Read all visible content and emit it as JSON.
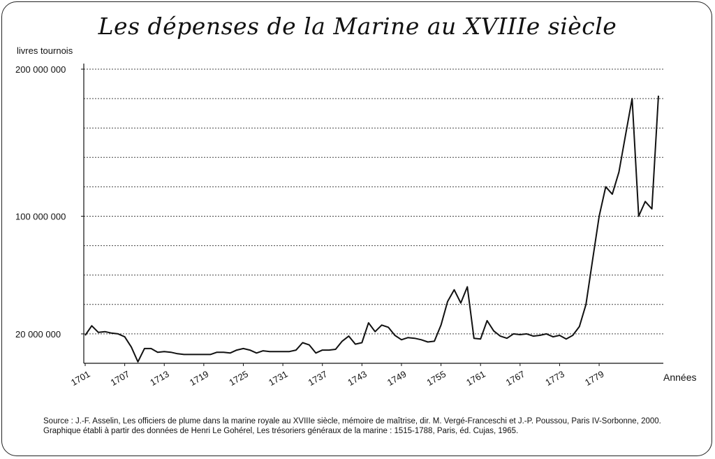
{
  "title": "Les dépenses de la Marine au XVIIIe siècle",
  "source_lines": [
    "Source : J.-F. Asselin, Les officiers de plume dans la marine royale au XVIIIe siècle, mémoire de maîtrise, dir. M. Vergé-Franceschi et J.-P. Poussou, Paris IV-Sorbonne, 2000.",
    "Graphique établi à partir des données de Henri Le Gohérel, Les trésoriers généraux de la marine : 1515-1788, Paris, éd. Cujas, 1965."
  ],
  "chart_data": {
    "type": "line",
    "xlabel": "Années",
    "ylabel": "livres tournois",
    "xlim": [
      1701,
      1788
    ],
    "ylim": [
      0,
      200000000
    ],
    "y_ticks": [
      {
        "value": 200000000,
        "label": "200 000 000"
      },
      {
        "value": 100000000,
        "label": "100 000 000"
      },
      {
        "value": 20000000,
        "label": "20 000 000"
      }
    ],
    "x_ticks": [
      "1701",
      "1707",
      "1713",
      "1719",
      "1725",
      "1731",
      "1737",
      "1743",
      "1749",
      "1755",
      "1761",
      "1767",
      "1773",
      "1779"
    ],
    "grid": "horizontal dotted",
    "grid_step": 20000000,
    "line_color": "#111111",
    "series": [
      {
        "x": [
          1701,
          1702,
          1703,
          1704,
          1705,
          1706,
          1707,
          1708,
          1709,
          1710,
          1711,
          1712,
          1713,
          1714,
          1715,
          1716,
          1717,
          1718,
          1719,
          1720,
          1721,
          1722,
          1723,
          1724,
          1725,
          1726,
          1727,
          1728,
          1729,
          1730,
          1731,
          1732,
          1733,
          1734,
          1735,
          1736,
          1737,
          1738,
          1739,
          1740,
          1741,
          1742,
          1743,
          1744,
          1745,
          1746,
          1747,
          1748,
          1749,
          1750,
          1751,
          1752,
          1753,
          1754,
          1755,
          1756,
          1757,
          1758,
          1759,
          1760,
          1761,
          1762,
          1763,
          1764,
          1765,
          1766,
          1767,
          1768,
          1769,
          1770,
          1771,
          1772,
          1773,
          1774,
          1775,
          1776,
          1777,
          1778,
          1779,
          1780,
          1781,
          1782,
          1783,
          1784,
          1785,
          1786,
          1787,
          1788
        ],
        "values": [
          19000000,
          25500000,
          21000000,
          21500000,
          20500000,
          20000000,
          18000000,
          11000000,
          1000000,
          10000000,
          10000000,
          7500000,
          8000000,
          7500000,
          6500000,
          6000000,
          6000000,
          6000000,
          6000000,
          6000000,
          7500000,
          7500000,
          7000000,
          9000000,
          10000000,
          9000000,
          7000000,
          8500000,
          8000000,
          8000000,
          8000000,
          8000000,
          9000000,
          14000000,
          12500000,
          7000000,
          9000000,
          9000000,
          9500000,
          15000000,
          18500000,
          13000000,
          14000000,
          27500000,
          21500000,
          26000000,
          24500000,
          19000000,
          16000000,
          17500000,
          17000000,
          16000000,
          14500000,
          15000000,
          26000000,
          42000000,
          50000000,
          41000000,
          52000000,
          17000000,
          16500000,
          29000000,
          22000000,
          18500000,
          17000000,
          20000000,
          19500000,
          20000000,
          18500000,
          19000000,
          20000000,
          18000000,
          19000000,
          16500000,
          19000000,
          25000000,
          40000000,
          70000000,
          100000000,
          120000000,
          115000000,
          130000000,
          155000000,
          180000000,
          100000000,
          110000000,
          105000000,
          182000000
        ]
      }
    ]
  }
}
